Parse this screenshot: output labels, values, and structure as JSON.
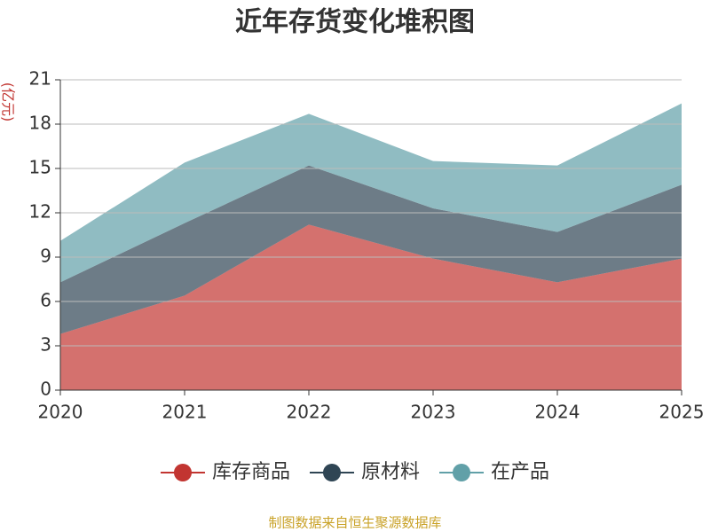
{
  "chart_data": {
    "type": "stacked-area",
    "title": "近年存货变化堆积图",
    "y_label": "(亿元)",
    "categories": [
      "2020",
      "2021",
      "2022",
      "2023",
      "2024",
      "2025"
    ],
    "series": [
      {
        "name": "库存商品",
        "color": "#c23531",
        "values": [
          3.8,
          6.4,
          11.2,
          8.9,
          7.3,
          8.9
        ]
      },
      {
        "name": "原材料",
        "color": "#2f4554",
        "values": [
          3.5,
          4.9,
          4.0,
          3.4,
          3.4,
          5.0
        ]
      },
      {
        "name": "在产品",
        "color": "#61a0a8",
        "values": [
          2.8,
          4.1,
          3.5,
          3.2,
          4.5,
          5.5
        ]
      }
    ],
    "ylim": [
      0,
      21
    ],
    "yticks": [
      0,
      3,
      6,
      9,
      12,
      15,
      18,
      21
    ],
    "grid": true,
    "source": "制图数据来自恒生聚源数据库"
  }
}
